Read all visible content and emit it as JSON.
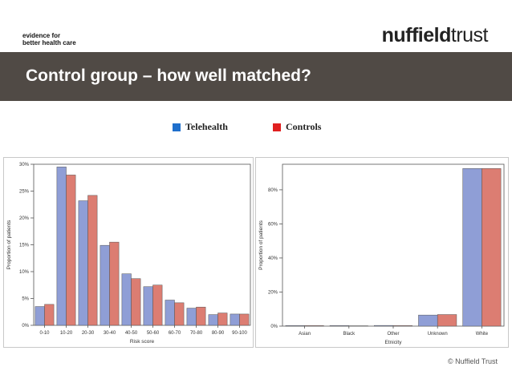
{
  "header": {
    "tagline_line1": "evidence for",
    "tagline_line2": "better health care",
    "logo_part1": "nuffield",
    "logo_part2": "trust"
  },
  "banner": {
    "title": "Control group – how well matched?"
  },
  "legend": [
    {
      "label": "Telehealth",
      "color": "#1f6fcc"
    },
    {
      "label": "Controls",
      "color": "#e02020"
    }
  ],
  "chart_data": [
    {
      "type": "bar",
      "xlabel": "Risk score",
      "ylabel": "Proportion of patients",
      "categories": [
        "0-10",
        "10-20",
        "20-30",
        "30-40",
        "40-50",
        "50-60",
        "60-70",
        "70-80",
        "80-90",
        "90-100"
      ],
      "series": [
        {
          "name": "Telehealth",
          "values": [
            3.5,
            29.5,
            23.2,
            14.9,
            9.6,
            7.2,
            4.7,
            3.2,
            2.0,
            2.1
          ]
        },
        {
          "name": "Controls",
          "values": [
            3.9,
            28.0,
            24.2,
            15.5,
            8.7,
            7.5,
            4.2,
            3.4,
            2.3,
            2.1
          ]
        }
      ],
      "ylim": [
        0,
        30
      ],
      "yticks": [
        0,
        5,
        10,
        15,
        20,
        25,
        30
      ],
      "ytick_labels": [
        "0%",
        "5%",
        "10%",
        "15%",
        "20%",
        "25%",
        "30%"
      ],
      "series_colors": [
        "#8f9ed6",
        "#dc7d72"
      ],
      "grid": false
    },
    {
      "type": "bar",
      "xlabel": "Etnicity",
      "ylabel": "Proportion of patients",
      "categories": [
        "Asian",
        "Black",
        "Other",
        "Unknown",
        "White"
      ],
      "series": [
        {
          "name": "Telehealth",
          "values": [
            0.3,
            0.3,
            0.4,
            6.5,
            92.5
          ]
        },
        {
          "name": "Controls",
          "values": [
            0.3,
            0.2,
            0.3,
            6.8,
            92.5
          ]
        }
      ],
      "ylim": [
        0,
        95
      ],
      "yticks": [
        0,
        20,
        40,
        60,
        80
      ],
      "ytick_labels": [
        "0%",
        "20%",
        "40%",
        "60%",
        "80%"
      ],
      "series_colors": [
        "#8f9ed6",
        "#dc7d72"
      ],
      "grid": false
    }
  ],
  "footer": {
    "copyright": "© Nuffield Trust"
  }
}
